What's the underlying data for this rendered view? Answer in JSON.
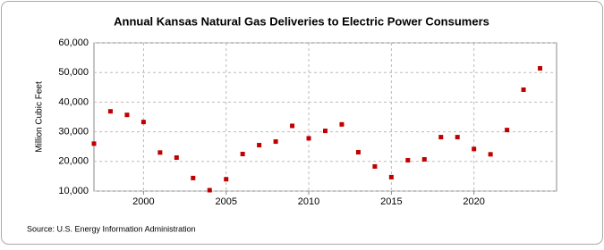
{
  "chart_data": {
    "type": "scatter",
    "title": "Annual Kansas Natural Gas Deliveries to Electric Power Consumers",
    "y_label": "Million Cubic Feet",
    "source": "Source: U.S. Energy Information Administration",
    "x": [
      1997,
      1998,
      1999,
      2000,
      2001,
      2002,
      2003,
      2004,
      2005,
      2006,
      2007,
      2008,
      2009,
      2010,
      2011,
      2012,
      2013,
      2014,
      2015,
      2016,
      2017,
      2018,
      2019,
      2020,
      2021,
      2022,
      2023,
      2024
    ],
    "series": [
      {
        "color": "#c00000",
        "values": [
          26000,
          36900,
          35700,
          33300,
          23000,
          21300,
          14400,
          10300,
          14000,
          22500,
          25500,
          26700,
          32000,
          27800,
          30300,
          32500,
          23100,
          18300,
          14700,
          20400,
          20700,
          28200,
          28200,
          24200,
          22400,
          30600,
          44200,
          51400
        ]
      }
    ],
    "xlim": [
      1997,
      2025
    ],
    "xticks": [
      2000,
      2005,
      2010,
      2015,
      2020
    ],
    "ylim": [
      10000,
      60000
    ],
    "yticks": [
      {
        "value": 10000,
        "label": "10,000"
      },
      {
        "value": 20000,
        "label": "20,000"
      },
      {
        "value": 30000,
        "label": "30,000"
      },
      {
        "value": 40000,
        "label": "40,000"
      },
      {
        "value": 50000,
        "label": "50,000"
      },
      {
        "value": 60000,
        "label": "60,000"
      }
    ],
    "grid": true
  }
}
